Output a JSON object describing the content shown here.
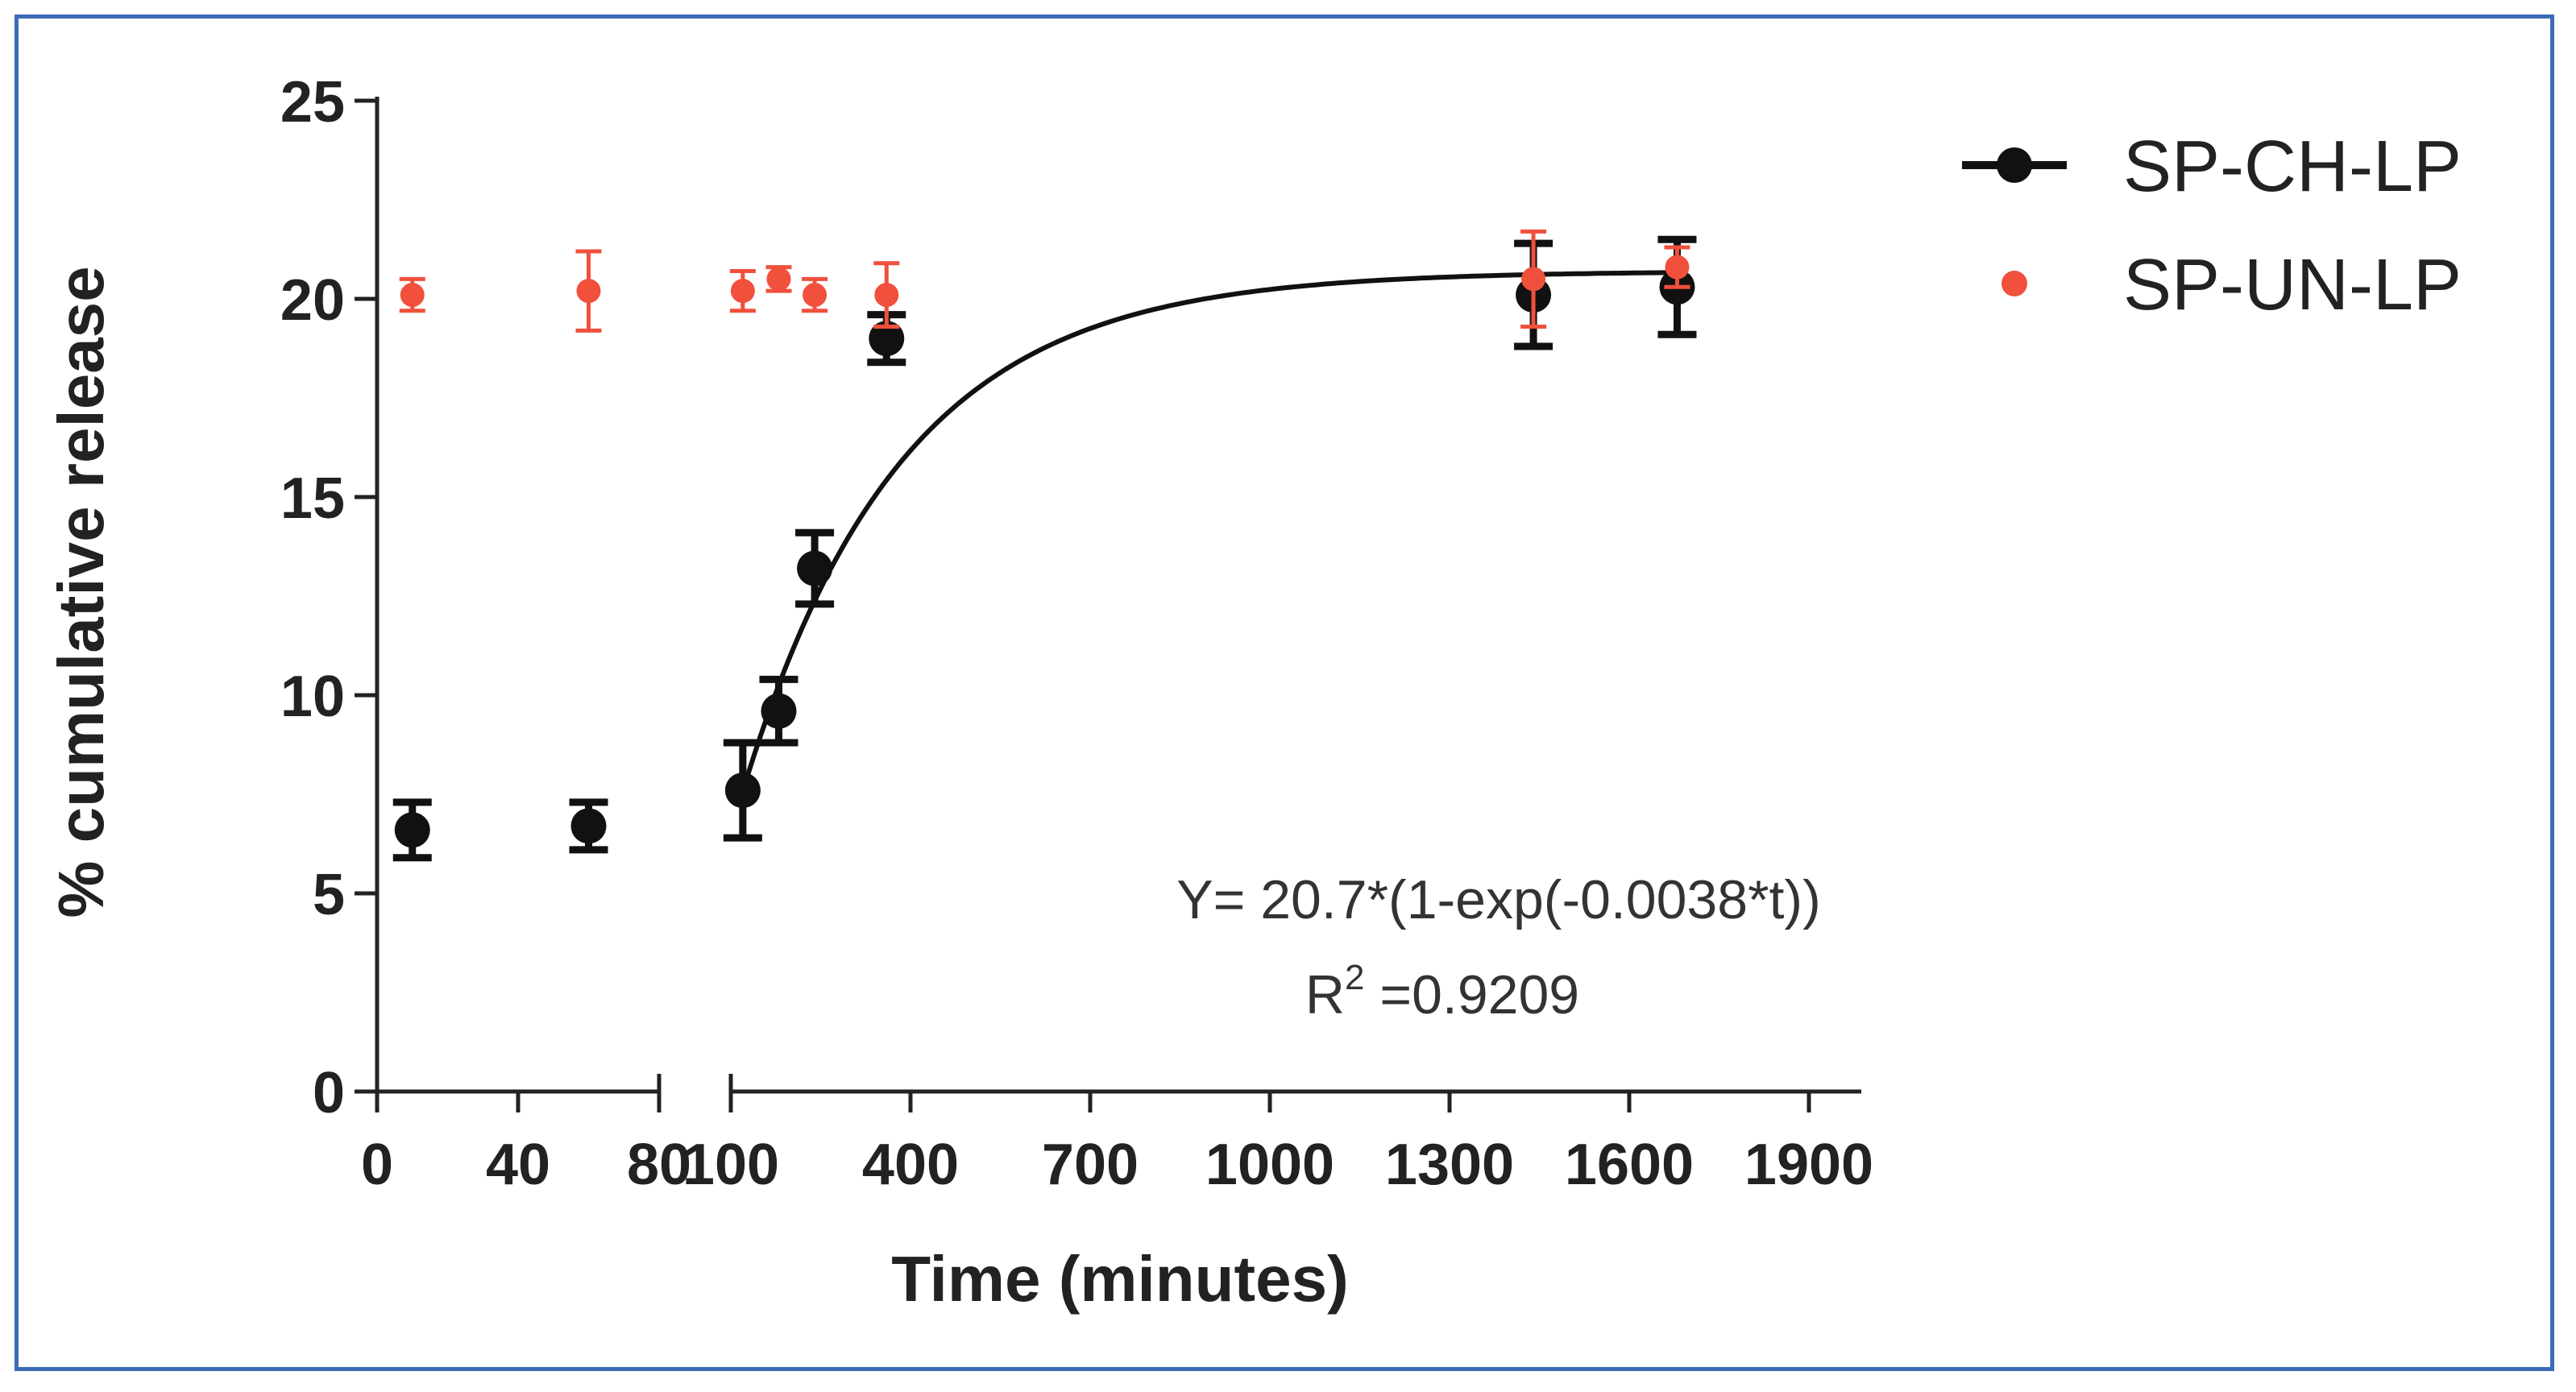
{
  "chart_data": {
    "type": "scatter",
    "xlabel": "Time (minutes)",
    "ylabel": "% cumulative release",
    "ylim": [
      0,
      25
    ],
    "y_ticks": [
      "0",
      "5",
      "10",
      "15",
      "20",
      "25"
    ],
    "x_ticks_segment1": [
      "0",
      "40",
      "80"
    ],
    "x_ticks_segment2": [
      "100",
      "400",
      "700",
      "1000",
      "1300",
      "1600",
      "1900"
    ],
    "x_axis_broken": true,
    "x_segment1_range": [
      0,
      80
    ],
    "x_segment2_range": [
      100,
      1900
    ],
    "series": [
      {
        "name": "SP-CH-LP",
        "color": "#111111",
        "marker": "circle",
        "points": [
          {
            "x": 10,
            "y": 6.6,
            "err": 0.7
          },
          {
            "x": 60,
            "y": 6.7,
            "err": 0.6
          },
          {
            "x": 120,
            "y": 7.6,
            "err": 1.2
          },
          {
            "x": 180,
            "y": 9.6,
            "err": 0.8
          },
          {
            "x": 240,
            "y": 13.2,
            "err": 0.9
          },
          {
            "x": 360,
            "y": 19.0,
            "err": 0.6
          },
          {
            "x": 1440,
            "y": 20.1,
            "err": 1.3
          },
          {
            "x": 1680,
            "y": 20.3,
            "err": 1.2
          }
        ],
        "fit": {
          "a": 20.7,
          "k": 0.0038,
          "x_start": 120,
          "x_end": 1680
        }
      },
      {
        "name": "SP-UN-LP",
        "color": "#f0503c",
        "marker": "circle",
        "points": [
          {
            "x": 10,
            "y": 20.1,
            "err": 0.4
          },
          {
            "x": 60,
            "y": 20.2,
            "err": 1.0
          },
          {
            "x": 120,
            "y": 20.2,
            "err": 0.5
          },
          {
            "x": 180,
            "y": 20.5,
            "err": 0.3
          },
          {
            "x": 240,
            "y": 20.1,
            "err": 0.4
          },
          {
            "x": 360,
            "y": 20.1,
            "err": 0.8
          },
          {
            "x": 1440,
            "y": 20.5,
            "err": 1.2
          },
          {
            "x": 1680,
            "y": 20.8,
            "err": 0.5
          }
        ]
      }
    ],
    "legend_position": "top-right",
    "annotation": {
      "equation": "Y= 20.7*(1-exp(-0.0038*t))",
      "r2_prefix": "R",
      "r2_sup": "2",
      "r2_value": " =0.9209"
    }
  }
}
